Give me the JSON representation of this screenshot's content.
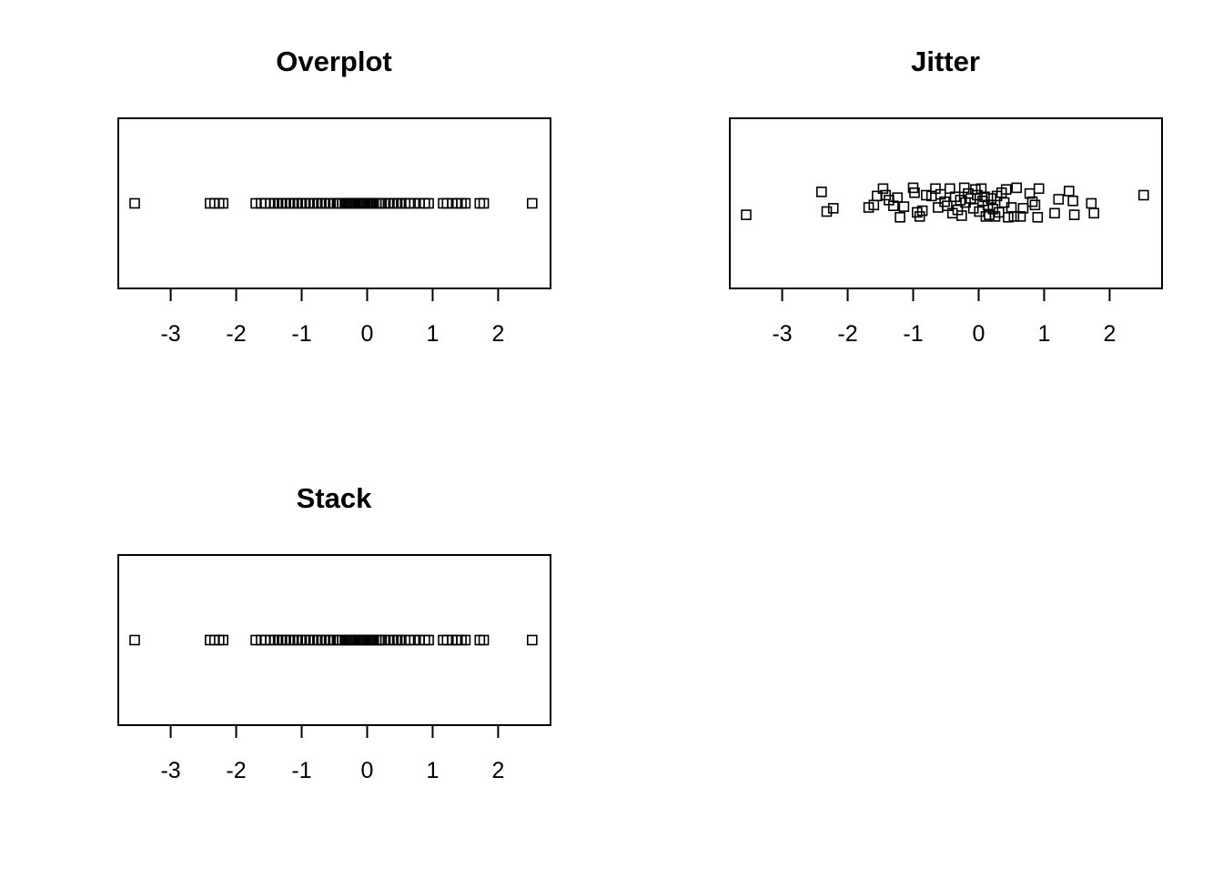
{
  "chart_data": [
    {
      "type": "scatter",
      "method": "overplot",
      "title": "Overplot",
      "xlabel": "",
      "ylabel": "",
      "xlim": [
        -3.8,
        2.8
      ],
      "xticks": [
        -3,
        -2,
        -1,
        0,
        1,
        2
      ],
      "xtick_labels": [
        "-3",
        "-2",
        "-1",
        "0",
        "1",
        "2"
      ],
      "marker": "open-square",
      "x": [
        -3.55,
        -2.4,
        -2.33,
        -2.26,
        -2.2,
        -1.7,
        -1.62,
        -1.55,
        -1.48,
        -1.42,
        -1.36,
        -1.3,
        -1.24,
        -1.18,
        -1.12,
        -1.06,
        -1.0,
        -0.94,
        -0.88,
        -0.82,
        -0.76,
        -0.7,
        -0.64,
        -0.58,
        -0.52,
        -0.46,
        -0.42,
        -0.38,
        -0.34,
        -0.3,
        -0.26,
        -0.22,
        -0.18,
        -0.14,
        -0.1,
        -0.06,
        -0.02,
        0.02,
        0.06,
        0.1,
        0.14,
        0.18,
        0.22,
        0.28,
        0.34,
        0.4,
        0.46,
        0.52,
        0.58,
        0.64,
        0.72,
        0.8,
        0.88,
        0.94,
        1.16,
        1.22,
        1.3,
        1.38,
        1.44,
        1.5,
        1.72,
        1.78,
        2.52
      ]
    },
    {
      "type": "scatter",
      "method": "jitter",
      "title": "Jitter",
      "xlabel": "",
      "ylabel": "",
      "xlim": [
        -3.8,
        2.8
      ],
      "xticks": [
        -3,
        -2,
        -1,
        0,
        1,
        2
      ],
      "xtick_labels": [
        "-3",
        "-2",
        "-1",
        "0",
        "1",
        "2"
      ],
      "marker": "open-square",
      "points": [
        {
          "x": -3.55,
          "y": -0.14
        },
        {
          "x": -2.4,
          "y": 0.14
        },
        {
          "x": -2.32,
          "y": -0.1
        },
        {
          "x": -2.22,
          "y": -0.06
        },
        {
          "x": -1.68,
          "y": -0.05
        },
        {
          "x": -1.6,
          "y": -0.02
        },
        {
          "x": -1.55,
          "y": 0.09
        },
        {
          "x": -1.46,
          "y": 0.18
        },
        {
          "x": -1.42,
          "y": 0.1
        },
        {
          "x": -1.37,
          "y": 0.04
        },
        {
          "x": -1.3,
          "y": -0.03
        },
        {
          "x": -1.24,
          "y": 0.07
        },
        {
          "x": -1.2,
          "y": -0.17
        },
        {
          "x": -1.14,
          "y": -0.04
        },
        {
          "x": -1.0,
          "y": 0.19
        },
        {
          "x": -0.98,
          "y": 0.13
        },
        {
          "x": -0.94,
          "y": -0.11
        },
        {
          "x": -0.9,
          "y": -0.16
        },
        {
          "x": -0.86,
          "y": -0.09
        },
        {
          "x": -0.8,
          "y": 0.1
        },
        {
          "x": -0.72,
          "y": 0.09
        },
        {
          "x": -0.66,
          "y": 0.18
        },
        {
          "x": -0.62,
          "y": -0.05
        },
        {
          "x": -0.58,
          "y": 0.11
        },
        {
          "x": -0.52,
          "y": 0.02
        },
        {
          "x": -0.48,
          "y": -0.03
        },
        {
          "x": -0.44,
          "y": 0.18
        },
        {
          "x": -0.4,
          "y": -0.12
        },
        {
          "x": -0.36,
          "y": 0.08
        },
        {
          "x": -0.32,
          "y": -0.08
        },
        {
          "x": -0.28,
          "y": 0.04
        },
        {
          "x": -0.26,
          "y": -0.15
        },
        {
          "x": -0.22,
          "y": 0.19
        },
        {
          "x": -0.2,
          "y": 0.01
        },
        {
          "x": -0.16,
          "y": 0.12
        },
        {
          "x": -0.12,
          "y": 0.06
        },
        {
          "x": -0.08,
          "y": -0.06
        },
        {
          "x": -0.05,
          "y": 0.17
        },
        {
          "x": -0.02,
          "y": 0.1
        },
        {
          "x": 0.01,
          "y": -0.1
        },
        {
          "x": 0.04,
          "y": 0.18
        },
        {
          "x": 0.06,
          "y": 0.03
        },
        {
          "x": 0.09,
          "y": 0.08
        },
        {
          "x": 0.11,
          "y": -0.16
        },
        {
          "x": 0.14,
          "y": -0.02
        },
        {
          "x": 0.16,
          "y": -0.14
        },
        {
          "x": 0.19,
          "y": 0.06
        },
        {
          "x": 0.22,
          "y": -0.07
        },
        {
          "x": 0.25,
          "y": -0.16
        },
        {
          "x": 0.28,
          "y": 0.09
        },
        {
          "x": 0.31,
          "y": -0.11
        },
        {
          "x": 0.35,
          "y": 0.13
        },
        {
          "x": 0.39,
          "y": 0.01
        },
        {
          "x": 0.42,
          "y": 0.17
        },
        {
          "x": 0.45,
          "y": -0.17
        },
        {
          "x": 0.5,
          "y": -0.05
        },
        {
          "x": 0.54,
          "y": -0.16
        },
        {
          "x": 0.58,
          "y": 0.19
        },
        {
          "x": 0.64,
          "y": -0.16
        },
        {
          "x": 0.68,
          "y": -0.06
        },
        {
          "x": 0.78,
          "y": 0.12
        },
        {
          "x": 0.82,
          "y": 0.02
        },
        {
          "x": 0.86,
          "y": -0.02
        },
        {
          "x": 0.9,
          "y": -0.17
        },
        {
          "x": 0.92,
          "y": 0.18
        },
        {
          "x": 1.16,
          "y": -0.12
        },
        {
          "x": 1.22,
          "y": 0.05
        },
        {
          "x": 1.38,
          "y": 0.15
        },
        {
          "x": 1.44,
          "y": 0.03
        },
        {
          "x": 1.46,
          "y": -0.14
        },
        {
          "x": 1.72,
          "y": 0.0
        },
        {
          "x": 1.76,
          "y": -0.12
        },
        {
          "x": 2.52,
          "y": 0.1
        }
      ]
    },
    {
      "type": "scatter",
      "method": "stack",
      "title": "Stack",
      "xlabel": "",
      "ylabel": "",
      "xlim": [
        -3.8,
        2.8
      ],
      "xticks": [
        -3,
        -2,
        -1,
        0,
        1,
        2
      ],
      "xtick_labels": [
        "-3",
        "-2",
        "-1",
        "0",
        "1",
        "2"
      ],
      "marker": "open-square",
      "x": [
        -3.55,
        -2.4,
        -2.33,
        -2.26,
        -2.2,
        -1.7,
        -1.62,
        -1.55,
        -1.48,
        -1.42,
        -1.36,
        -1.3,
        -1.24,
        -1.18,
        -1.12,
        -1.06,
        -1.0,
        -0.94,
        -0.88,
        -0.82,
        -0.76,
        -0.7,
        -0.64,
        -0.58,
        -0.52,
        -0.46,
        -0.42,
        -0.38,
        -0.34,
        -0.3,
        -0.26,
        -0.22,
        -0.18,
        -0.14,
        -0.1,
        -0.06,
        -0.02,
        0.02,
        0.06,
        0.1,
        0.14,
        0.18,
        0.22,
        0.28,
        0.34,
        0.4,
        0.46,
        0.52,
        0.58,
        0.64,
        0.72,
        0.8,
        0.88,
        0.94,
        1.16,
        1.22,
        1.3,
        1.38,
        1.44,
        1.5,
        1.72,
        1.78,
        2.52
      ]
    }
  ]
}
